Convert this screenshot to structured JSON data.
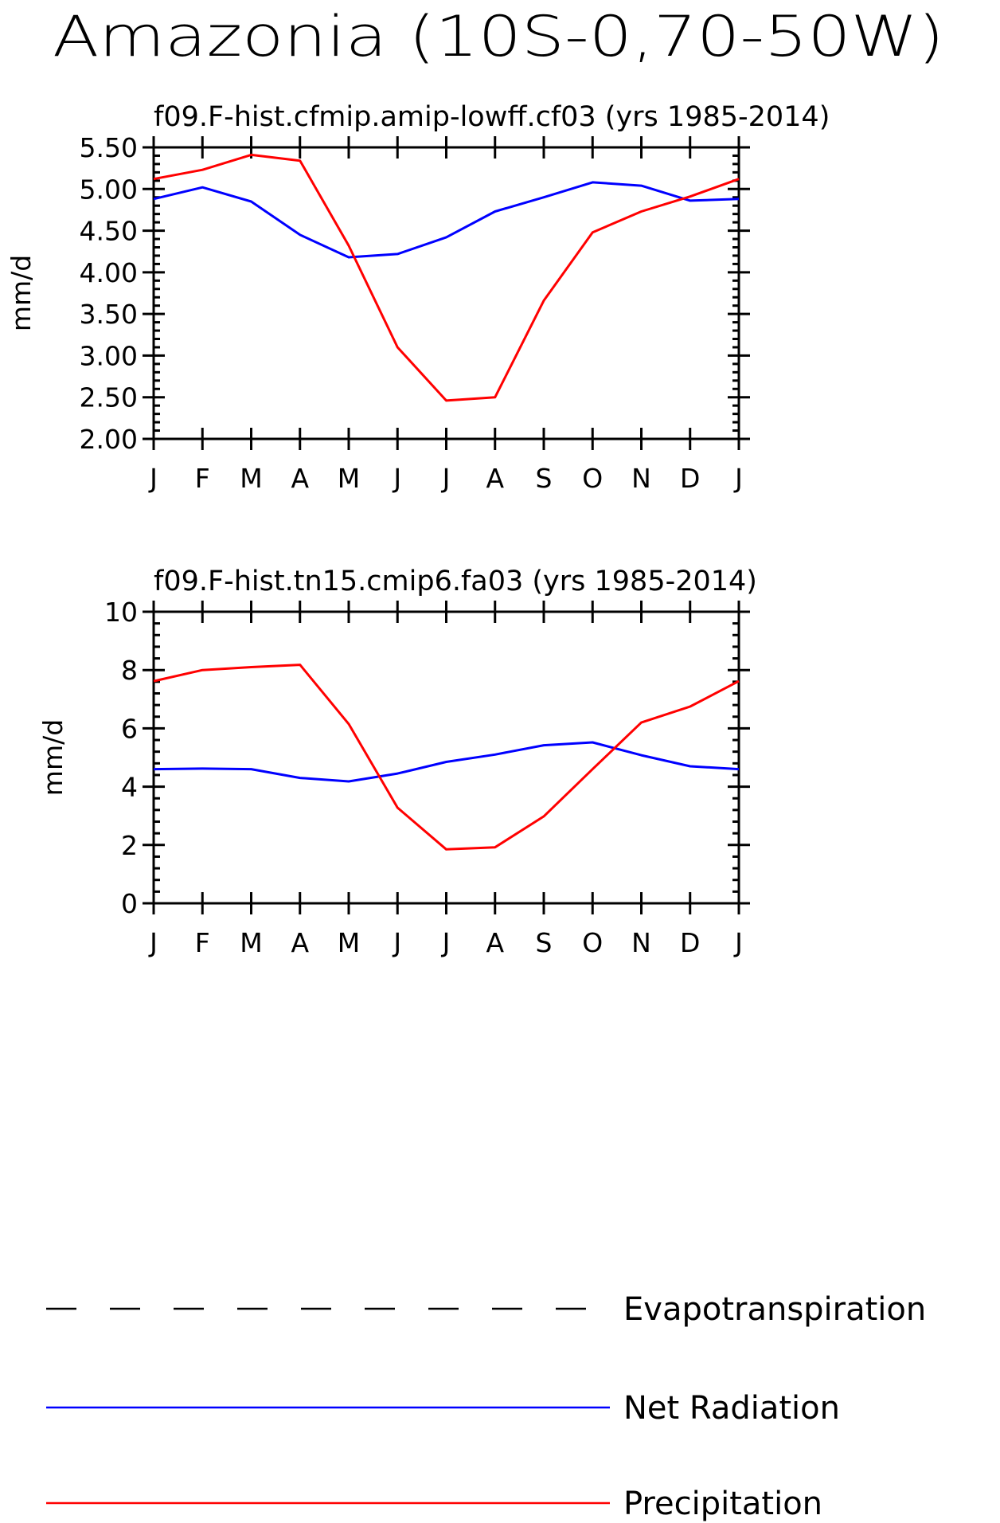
{
  "title": "Amazonia (10S-0,70-50W)",
  "legend": {
    "items": [
      {
        "label": "Evapotranspiration",
        "color": "#000000",
        "style": "dashed"
      },
      {
        "label": "Net Radiation",
        "color": "#0000ff",
        "style": "solid"
      },
      {
        "label": "Precipitation",
        "color": "#ff0000",
        "style": "solid"
      }
    ]
  },
  "chart_data": [
    {
      "type": "line",
      "title": "f09.F-hist.cfmip.amip-lowff.cf03 (yrs 1985-2014)",
      "ylabel": "mm/d",
      "xlabel": "",
      "categories": [
        "J",
        "F",
        "M",
        "A",
        "M",
        "J",
        "J",
        "A",
        "S",
        "O",
        "N",
        "D",
        "J"
      ],
      "ylim": [
        2.0,
        5.5
      ],
      "yticks": [
        2.0,
        2.5,
        3.0,
        3.5,
        4.0,
        4.5,
        5.0,
        5.5
      ],
      "ytick_labels": [
        "2.00",
        "2.50",
        "3.00",
        "3.50",
        "4.00",
        "4.50",
        "5.00",
        "5.50"
      ],
      "series": [
        {
          "name": "Net Radiation",
          "color": "#0000ff",
          "values": [
            4.88,
            5.02,
            4.85,
            4.45,
            4.18,
            4.22,
            4.42,
            4.73,
            4.9,
            5.08,
            5.04,
            4.86,
            4.88
          ]
        },
        {
          "name": "Precipitation",
          "color": "#ff0000",
          "values": [
            5.12,
            5.23,
            5.41,
            5.34,
            4.32,
            3.1,
            2.46,
            2.5,
            3.66,
            4.48,
            4.73,
            4.91,
            5.12
          ]
        }
      ]
    },
    {
      "type": "line",
      "title": "f09.F-hist.tn15.cmip6.fa03 (yrs 1985-2014)",
      "ylabel": "mm/d",
      "xlabel": "",
      "categories": [
        "J",
        "F",
        "M",
        "A",
        "M",
        "J",
        "J",
        "A",
        "S",
        "O",
        "N",
        "D",
        "J"
      ],
      "ylim": [
        0,
        10
      ],
      "yticks": [
        0,
        2,
        4,
        6,
        8,
        10
      ],
      "ytick_labels": [
        "0",
        "2",
        "4",
        "6",
        "8",
        "10"
      ],
      "series": [
        {
          "name": "Net Radiation",
          "color": "#0000ff",
          "values": [
            4.6,
            4.62,
            4.6,
            4.3,
            4.18,
            4.45,
            4.85,
            5.1,
            5.42,
            5.52,
            5.08,
            4.7,
            4.6
          ]
        },
        {
          "name": "Precipitation",
          "color": "#ff0000",
          "values": [
            7.62,
            8.0,
            8.1,
            8.18,
            6.15,
            3.28,
            1.85,
            1.92,
            2.98,
            4.6,
            6.2,
            6.75,
            7.62
          ]
        }
      ]
    }
  ]
}
